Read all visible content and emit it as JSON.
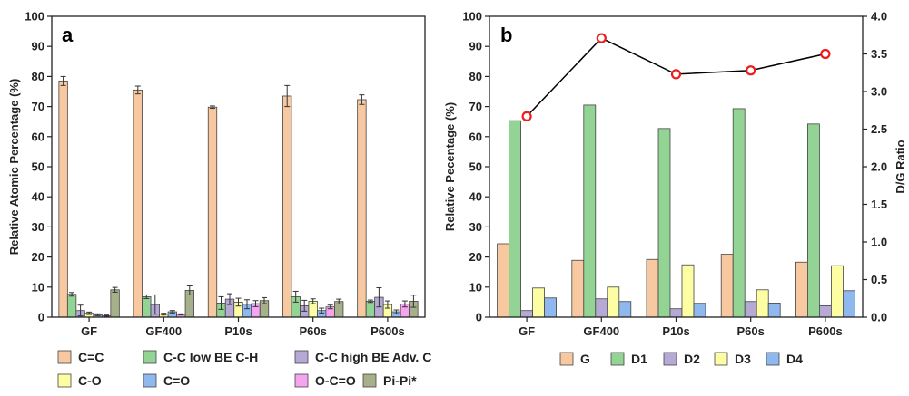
{
  "chart_data": [
    {
      "panel": "a",
      "type": "bar",
      "ylabel": "Relative Atomic Percentage (%)",
      "ylim": [
        0,
        100
      ],
      "yticks": [
        "0",
        "10",
        "20",
        "30",
        "40",
        "50",
        "60",
        "70",
        "80",
        "90",
        "100"
      ],
      "categories": [
        "GF",
        "GF400",
        "P10s",
        "P60s",
        "P600s"
      ],
      "error_bars": true,
      "legend_position": "bottom",
      "series": [
        {
          "name": "C=C",
          "color": "#f8c9a0",
          "values": [
            78.5,
            75.5,
            69.8,
            73.5,
            72.3
          ],
          "errors": [
            1.5,
            1.3,
            0.4,
            3.5,
            1.6
          ]
        },
        {
          "name": "C-C low BE C-H",
          "color": "#93d494",
          "values": [
            7.6,
            6.8,
            4.7,
            6.8,
            5.3
          ],
          "errors": [
            0.6,
            0.6,
            2.1,
            1.8,
            0.4
          ]
        },
        {
          "name": "C-C high BE Adv. C",
          "color": "#b6a9d6",
          "values": [
            2.2,
            4.2,
            6.0,
            3.8,
            6.6
          ],
          "errors": [
            1.8,
            3.2,
            1.8,
            1.8,
            3.2
          ]
        },
        {
          "name": "C-O",
          "color": "#fdfda4",
          "values": [
            1.3,
            1.0,
            5.0,
            5.3,
            4.2
          ],
          "errors": [
            0.4,
            0.3,
            1.3,
            0.8,
            1.2
          ]
        },
        {
          "name": "C=O",
          "color": "#8fb8ef",
          "values": [
            0.8,
            1.8,
            4.3,
            2.2,
            1.8
          ],
          "errors": [
            0.3,
            0.4,
            1.5,
            0.8,
            0.6
          ]
        },
        {
          "name": "O-C=O",
          "color": "#f3a6ef",
          "values": [
            0.5,
            0.9,
            4.5,
            3.4,
            4.4
          ],
          "errors": [
            0.2,
            0.2,
            1.0,
            0.6,
            1.0
          ]
        },
        {
          "name": "Pi-Pi*",
          "color": "#a6b08a",
          "values": [
            9.1,
            8.9,
            5.5,
            5.2,
            5.3
          ],
          "errors": [
            0.8,
            1.5,
            1.0,
            0.8,
            2.0
          ]
        }
      ]
    },
    {
      "panel": "b",
      "type": "bar",
      "ylabel": "Relative Pecentage (%)",
      "y2label": "D/G Ratio",
      "ylim": [
        0,
        100
      ],
      "y2lim": [
        0,
        4.0
      ],
      "yticks": [
        "0",
        "10",
        "20",
        "30",
        "40",
        "50",
        "60",
        "70",
        "80",
        "90",
        "100"
      ],
      "y2ticks": [
        "0.0",
        "0.5",
        "1.0",
        "1.5",
        "2.0",
        "2.5",
        "3.0",
        "3.5",
        "4.0"
      ],
      "categories": [
        "GF",
        "GF400",
        "P10s",
        "P60s",
        "P600s"
      ],
      "legend_position": "bottom",
      "series": [
        {
          "name": "G",
          "color": "#f8c9a0",
          "values": [
            24.4,
            18.9,
            19.2,
            20.9,
            18.3
          ]
        },
        {
          "name": "D1",
          "color": "#93d494",
          "values": [
            65.3,
            70.5,
            62.7,
            69.3,
            64.2
          ]
        },
        {
          "name": "D2",
          "color": "#b6a9d6",
          "values": [
            2.2,
            6.1,
            2.8,
            5.2,
            3.8
          ]
        },
        {
          "name": "D3",
          "color": "#fdfda4",
          "values": [
            9.7,
            10.0,
            17.4,
            9.1,
            17.1
          ]
        },
        {
          "name": "D4",
          "color": "#8fb8ef",
          "values": [
            6.4,
            5.2,
            4.6,
            4.7,
            8.8
          ]
        }
      ],
      "line_series": {
        "axis": "right",
        "color": "#000000",
        "marker_color": "#ee1c1c",
        "values": [
          2.67,
          3.71,
          3.23,
          3.28,
          3.5
        ]
      }
    }
  ]
}
